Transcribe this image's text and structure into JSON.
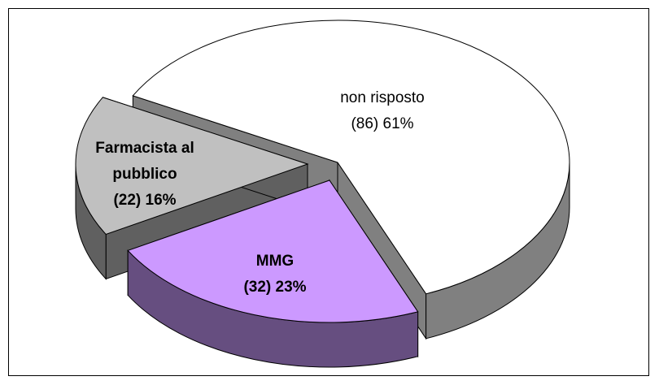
{
  "chart_data": {
    "type": "pie",
    "categories": [
      "non risposto",
      "MMG",
      "Farmacista al pubblico"
    ],
    "values": [
      61,
      23,
      16
    ],
    "value_labels": [
      "(86) 61%",
      "(32) 23%",
      "(22) 16%"
    ],
    "colors": [
      "#ffffff",
      "#cc99ff",
      "#c0c0c0"
    ],
    "side_colors": [
      "#808080",
      "#664e80",
      "#606060"
    ]
  }
}
